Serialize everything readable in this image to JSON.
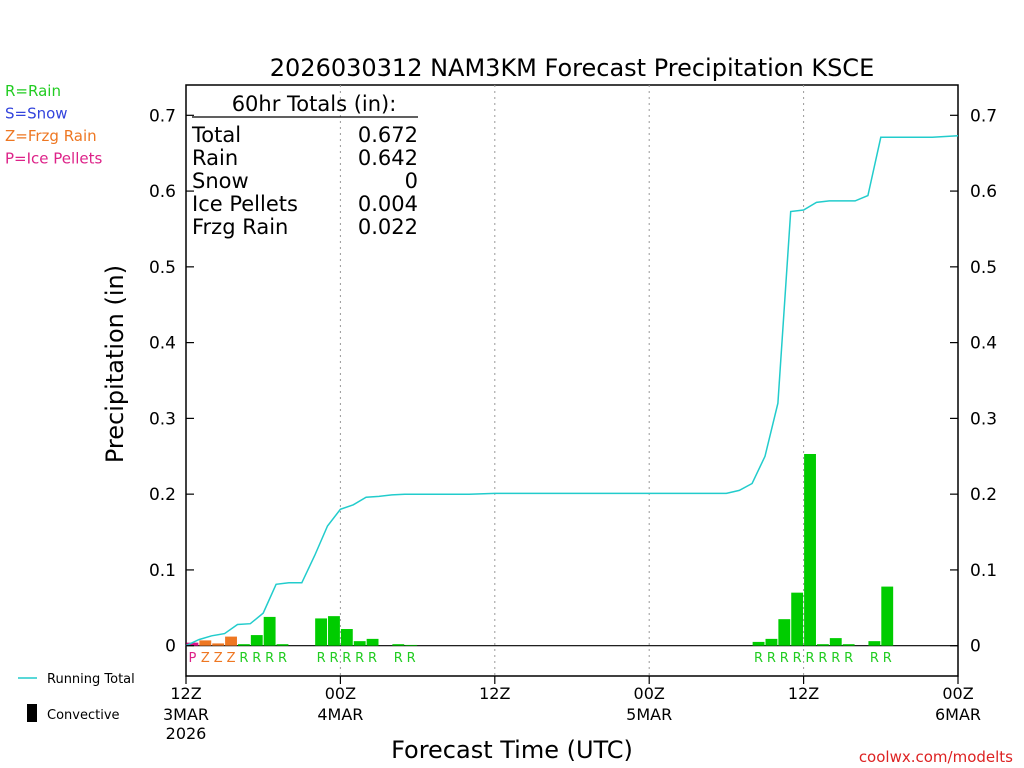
{
  "chart_data": {
    "type": "bar",
    "title": "2026030312 NAM3KM Forecast Precipitation KSCE",
    "ylabel": "Precipitation (in)",
    "xlabel": "Forecast Time (UTC)",
    "ylim": [
      -0.04,
      0.74
    ],
    "yticks": [
      "0",
      "0.1",
      "0.2",
      "0.3",
      "0.4",
      "0.5",
      "0.6",
      "0.7"
    ],
    "xlim_hours": [
      0,
      60
    ],
    "xticks": [
      {
        "h": 0,
        "l1": "12Z",
        "l2": "3MAR",
        "l3": "2026"
      },
      {
        "h": 12,
        "l1": "00Z",
        "l2": "4MAR",
        "l3": ""
      },
      {
        "h": 24,
        "l1": "12Z",
        "l2": "",
        "l3": ""
      },
      {
        "h": 36,
        "l1": "00Z",
        "l2": "5MAR",
        "l3": ""
      },
      {
        "h": 48,
        "l1": "12Z",
        "l2": "",
        "l3": ""
      },
      {
        "h": 60,
        "l1": "00Z",
        "l2": "6MAR",
        "l3": ""
      }
    ],
    "grid_hours": [
      12,
      24,
      36,
      48
    ],
    "legend_types": [
      {
        "code": "R=Rain",
        "color": "#22cc22"
      },
      {
        "code": "S=Snow",
        "color": "#3344dd"
      },
      {
        "code": "Z=Frzg Rain",
        "color": "#ee7722"
      },
      {
        "code": "P=Ice Pellets",
        "color": "#dd2288"
      }
    ],
    "colors": {
      "R": "#00cc00",
      "Z": "#ee7722",
      "P": "#dd1188",
      "running_total": "#22cccc",
      "label_R": "#22cc22",
      "label_Z": "#ee7722",
      "label_P": "#dd2288"
    },
    "totals": {
      "heading": "60hr Totals (in):",
      "rows": [
        {
          "label": "Total",
          "value": "0.672"
        },
        {
          "label": "Rain",
          "value": "0.642"
        },
        {
          "label": "Snow",
          "value": "0"
        },
        {
          "label": "Ice Pellets",
          "value": "0.004"
        },
        {
          "label": "Frzg Rain",
          "value": "0.022"
        }
      ]
    },
    "bars": [
      {
        "h": 0.5,
        "v": 0.004,
        "t": "P"
      },
      {
        "h": 1.5,
        "v": 0.007,
        "t": "Z"
      },
      {
        "h": 2.5,
        "v": 0.003,
        "t": "Z"
      },
      {
        "h": 3.5,
        "v": 0.012,
        "t": "Z"
      },
      {
        "h": 4.5,
        "v": 0.002,
        "t": "R"
      },
      {
        "h": 5.5,
        "v": 0.014,
        "t": "R"
      },
      {
        "h": 6.5,
        "v": 0.038,
        "t": "R"
      },
      {
        "h": 7.5,
        "v": 0.002,
        "t": "R"
      },
      {
        "h": 10.5,
        "v": 0.036,
        "t": "R"
      },
      {
        "h": 11.5,
        "v": 0.039,
        "t": "R"
      },
      {
        "h": 12.5,
        "v": 0.022,
        "t": "R"
      },
      {
        "h": 13.5,
        "v": 0.006,
        "t": "R"
      },
      {
        "h": 14.5,
        "v": 0.009,
        "t": "R"
      },
      {
        "h": 16.5,
        "v": 0.002,
        "t": "R"
      },
      {
        "h": 17.5,
        "v": 0.001,
        "t": "R"
      },
      {
        "h": 44.5,
        "v": 0.005,
        "t": "R"
      },
      {
        "h": 45.5,
        "v": 0.009,
        "t": "R"
      },
      {
        "h": 46.5,
        "v": 0.035,
        "t": "R"
      },
      {
        "h": 47.5,
        "v": 0.07,
        "t": "R"
      },
      {
        "h": 48.5,
        "v": 0.253,
        "t": "R"
      },
      {
        "h": 49.5,
        "v": 0.002,
        "t": "R"
      },
      {
        "h": 50.5,
        "v": 0.01,
        "t": "R"
      },
      {
        "h": 51.5,
        "v": 0.002,
        "t": "R"
      },
      {
        "h": 53.5,
        "v": 0.006,
        "t": "R"
      },
      {
        "h": 54.5,
        "v": 0.078,
        "t": "R"
      }
    ],
    "running_total": [
      [
        0,
        0.0
      ],
      [
        1,
        0.008
      ],
      [
        2,
        0.013
      ],
      [
        3,
        0.016
      ],
      [
        4,
        0.028
      ],
      [
        5,
        0.029
      ],
      [
        6,
        0.043
      ],
      [
        7,
        0.081
      ],
      [
        8,
        0.083
      ],
      [
        9,
        0.083
      ],
      [
        10,
        0.119
      ],
      [
        11,
        0.158
      ],
      [
        12,
        0.18
      ],
      [
        13,
        0.186
      ],
      [
        14,
        0.196
      ],
      [
        15,
        0.197
      ],
      [
        16,
        0.199
      ],
      [
        17,
        0.2
      ],
      [
        18,
        0.2
      ],
      [
        22,
        0.2
      ],
      [
        24,
        0.201
      ],
      [
        30,
        0.201
      ],
      [
        36,
        0.201
      ],
      [
        42,
        0.201
      ],
      [
        43,
        0.205
      ],
      [
        44,
        0.214
      ],
      [
        45,
        0.25
      ],
      [
        46,
        0.32
      ],
      [
        47,
        0.573
      ],
      [
        48,
        0.575
      ],
      [
        49,
        0.585
      ],
      [
        50,
        0.587
      ],
      [
        52,
        0.587
      ],
      [
        53,
        0.594
      ],
      [
        54,
        0.671
      ],
      [
        55,
        0.671
      ],
      [
        58,
        0.671
      ],
      [
        60,
        0.673
      ]
    ],
    "legend_bottom": [
      {
        "label": "Running Total",
        "kind": "line"
      },
      {
        "label": "Convective",
        "kind": "bar"
      }
    ]
  },
  "credit": "coolwx.com/modelts"
}
